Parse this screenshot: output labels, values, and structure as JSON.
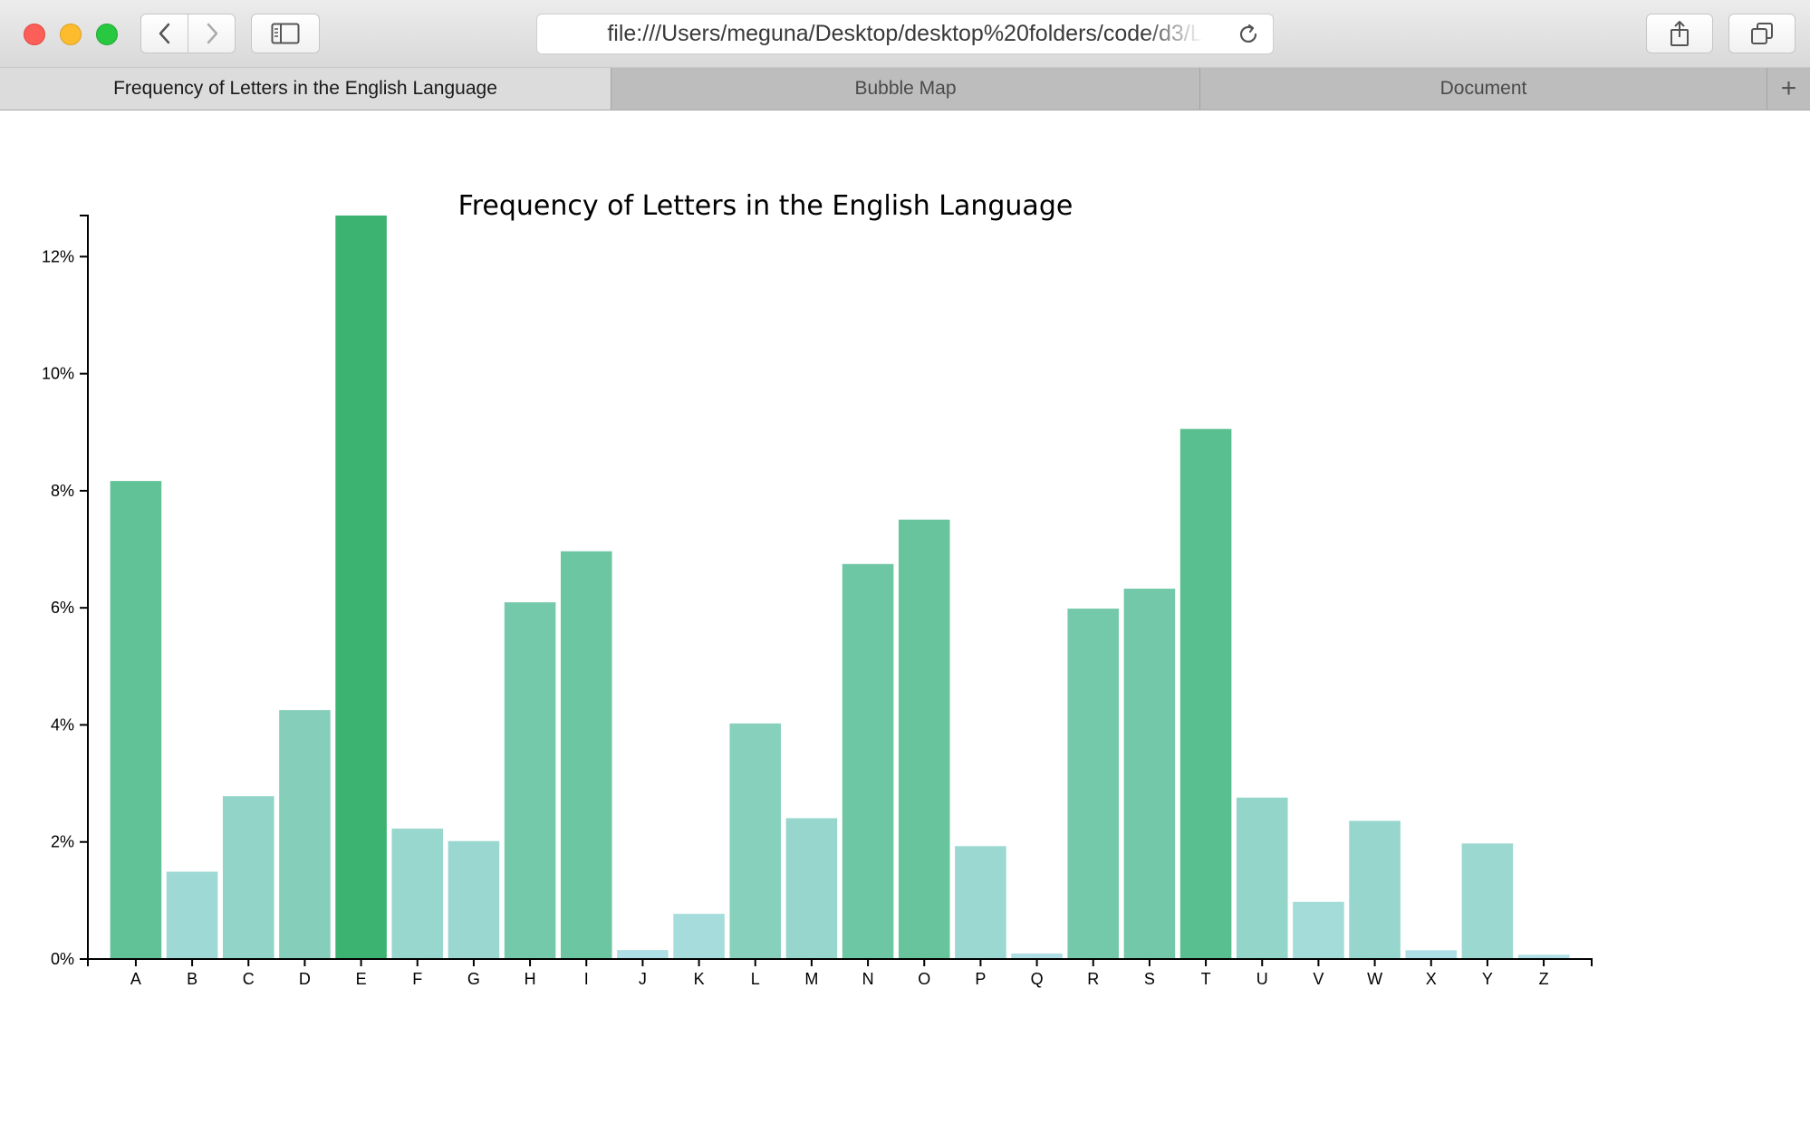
{
  "browser": {
    "url": "file:///Users/meguna/Desktop/desktop%20folders/code/d3/L",
    "tabs": [
      {
        "label": "Frequency of Letters in the English Language",
        "active": true
      },
      {
        "label": "Bubble Map",
        "active": false
      },
      {
        "label": "Document",
        "active": false
      }
    ],
    "new_tab_label": "+"
  },
  "chart_data": {
    "type": "bar",
    "title": "Frequency of Letters in the English Language",
    "xlabel": "",
    "ylabel": "",
    "categories": [
      "A",
      "B",
      "C",
      "D",
      "E",
      "F",
      "G",
      "H",
      "I",
      "J",
      "K",
      "L",
      "M",
      "N",
      "O",
      "P",
      "Q",
      "R",
      "S",
      "T",
      "U",
      "V",
      "W",
      "X",
      "Y",
      "Z"
    ],
    "values": [
      8.167,
      1.492,
      2.782,
      4.253,
      12.702,
      2.228,
      2.015,
      6.094,
      6.966,
      0.153,
      0.772,
      4.025,
      2.406,
      6.749,
      7.507,
      1.929,
      0.095,
      5.987,
      6.327,
      9.056,
      2.758,
      0.978,
      2.36,
      0.15,
      1.974,
      0.074
    ],
    "ylim": [
      0,
      12.702
    ],
    "y_ticks": [
      0,
      2,
      4,
      6,
      8,
      10,
      12
    ],
    "y_tick_labels": [
      "0%",
      "2%",
      "4%",
      "6%",
      "8%",
      "10%",
      "12%"
    ],
    "grid": false,
    "color_scale": {
      "low": "#b0e0e6",
      "high": "#3cb371"
    }
  }
}
